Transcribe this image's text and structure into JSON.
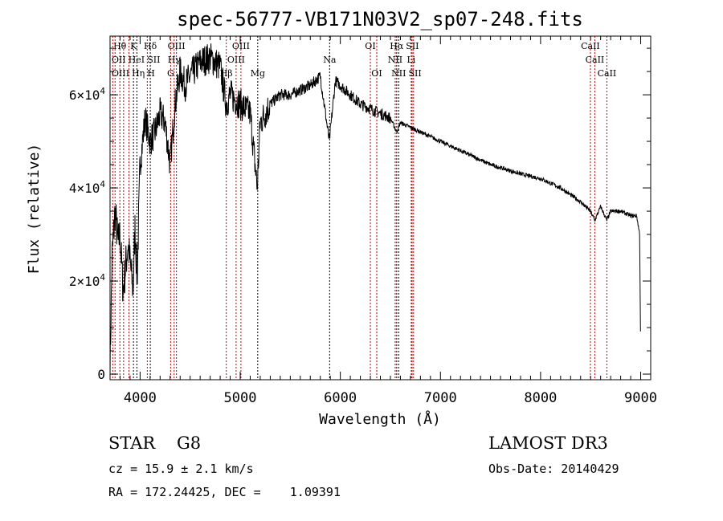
{
  "chart_data": {
    "type": "line",
    "title": "spec-56777-VB171N03V2_sp07-248.fits",
    "xlabel": "Wavelength (Å)",
    "ylabel": "Flux (relative)",
    "xlim": [
      3700,
      9100
    ],
    "ylim": [
      -1200,
      72600
    ],
    "x_ticks": [
      4000,
      5000,
      6000,
      7000,
      8000,
      9000
    ],
    "x_tick_labels": [
      "4000",
      "5000",
      "6000",
      "7000",
      "8000",
      "9000"
    ],
    "y_ticks": [
      0,
      20000,
      40000,
      60000
    ],
    "y_tick_labels": [
      {
        "m": "0",
        "e": ""
      },
      {
        "m": "2×10",
        "e": "4"
      },
      {
        "m": "4×10",
        "e": "4"
      },
      {
        "m": "6×10",
        "e": "4"
      }
    ],
    "spectrum_anchors": {
      "x": [
        3700,
        3720,
        3750,
        3780,
        3800,
        3830,
        3850,
        3880,
        3900,
        3930,
        3950,
        3970,
        4000,
        4050,
        4100,
        4150,
        4200,
        4250,
        4300,
        4350,
        4400,
        4450,
        4500,
        4600,
        4700,
        4800,
        4860,
        4900,
        5000,
        5100,
        5170,
        5200,
        5300,
        5400,
        5500,
        5600,
        5700,
        5800,
        5890,
        5950,
        6000,
        6100,
        6200,
        6300,
        6400,
        6500,
        6563,
        6600,
        6700,
        6800,
        7000,
        7200,
        7500,
        7800,
        8000,
        8200,
        8400,
        8498,
        8542,
        8600,
        8662,
        8700,
        8800,
        8900,
        8960,
        8990,
        9000
      ],
      "y": [
        1000,
        25000,
        35000,
        28000,
        30000,
        18000,
        22000,
        28000,
        24000,
        18000,
        32000,
        20000,
        45000,
        55000,
        50000,
        52000,
        56000,
        54000,
        45000,
        58000,
        65000,
        62000,
        64000,
        67000,
        68000,
        66000,
        58000,
        60000,
        58000,
        56000,
        40000,
        54000,
        58000,
        60000,
        60000,
        61000,
        62000,
        64000,
        50000,
        63000,
        62000,
        60000,
        58000,
        57000,
        56000,
        55000,
        52000,
        54000,
        53000,
        52000,
        50000,
        48000,
        45000,
        43000,
        42000,
        40000,
        37000,
        35000,
        33000,
        36000,
        33000,
        35000,
        35000,
        34000,
        34000,
        30000,
        4000
      ]
    },
    "line_labels": [
      {
        "name": "Hθ",
        "wave": 3798,
        "row": 1,
        "color": "red"
      },
      {
        "name": "K",
        "wave": 3934,
        "row": 1,
        "color": "black"
      },
      {
        "name": "Hδ",
        "wave": 4102,
        "row": 1,
        "color": "black"
      },
      {
        "name": "OIII",
        "wave": 4363,
        "row": 1,
        "color": "red"
      },
      {
        "name": "OIII",
        "wave": 5007,
        "row": 1,
        "color": "red"
      },
      {
        "name": "OI",
        "wave": 6300,
        "row": 1,
        "color": "red"
      },
      {
        "name": "Hα",
        "wave": 6563,
        "row": 1,
        "color": "black"
      },
      {
        "name": "SII",
        "wave": 6717,
        "row": 1,
        "color": "red"
      },
      {
        "name": "CaII",
        "wave": 8498,
        "row": 1,
        "color": "red"
      },
      {
        "name": "OII",
        "wave": 3727,
        "row": 2,
        "color": "red"
      },
      {
        "name": "HeI",
        "wave": 3889,
        "row": 2,
        "color": "red"
      },
      {
        "name": "SII",
        "wave": 4072,
        "row": 2,
        "color": "red"
      },
      {
        "name": "Hγ",
        "wave": 4340,
        "row": 2,
        "color": "red"
      },
      {
        "name": "OIII",
        "wave": 4959,
        "row": 2,
        "color": "red"
      },
      {
        "name": "Na",
        "wave": 5893,
        "row": 2,
        "color": "black"
      },
      {
        "name": "NII",
        "wave": 6548,
        "row": 2,
        "color": "red"
      },
      {
        "name": "Li",
        "wave": 6708,
        "row": 2,
        "color": "red"
      },
      {
        "name": "CaII",
        "wave": 8542,
        "row": 2,
        "color": "red"
      },
      {
        "name": "OIII",
        "wave": 3750,
        "row": 3,
        "color": "red"
      },
      {
        "name": "Hη",
        "wave": 3835,
        "row": 3,
        "color": "red"
      },
      {
        "name": "H",
        "wave": 3968,
        "row": 3,
        "color": "black"
      },
      {
        "name": "G",
        "wave": 4305,
        "row": 3,
        "color": "red"
      },
      {
        "name": "Hβ",
        "wave": 4861,
        "row": 3,
        "color": "red"
      },
      {
        "name": "Mg",
        "wave": 5175,
        "row": 3,
        "color": "black"
      },
      {
        "name": "OI",
        "wave": 6364,
        "row": 3,
        "color": "red"
      },
      {
        "name": "NII",
        "wave": 6583,
        "row": 3,
        "color": "black"
      },
      {
        "name": "SII",
        "wave": 6731,
        "row": 3,
        "color": "red"
      },
      {
        "name": "CaII",
        "wave": 8662,
        "row": 3,
        "color": "red"
      }
    ],
    "grid": false,
    "legend": "none"
  },
  "info": {
    "class": "STAR",
    "subclass": "G8",
    "cz": "cz = 15.9 ± 2.1 km/s",
    "radec": "RA = 172.24425, DEC =    1.09391",
    "survey": "LAMOST DR3",
    "obsdate": "Obs-Date: 20140429"
  },
  "colors": {
    "emission_line": "#c00000",
    "absorption_line": "#000000",
    "spectrum": "#000000"
  }
}
